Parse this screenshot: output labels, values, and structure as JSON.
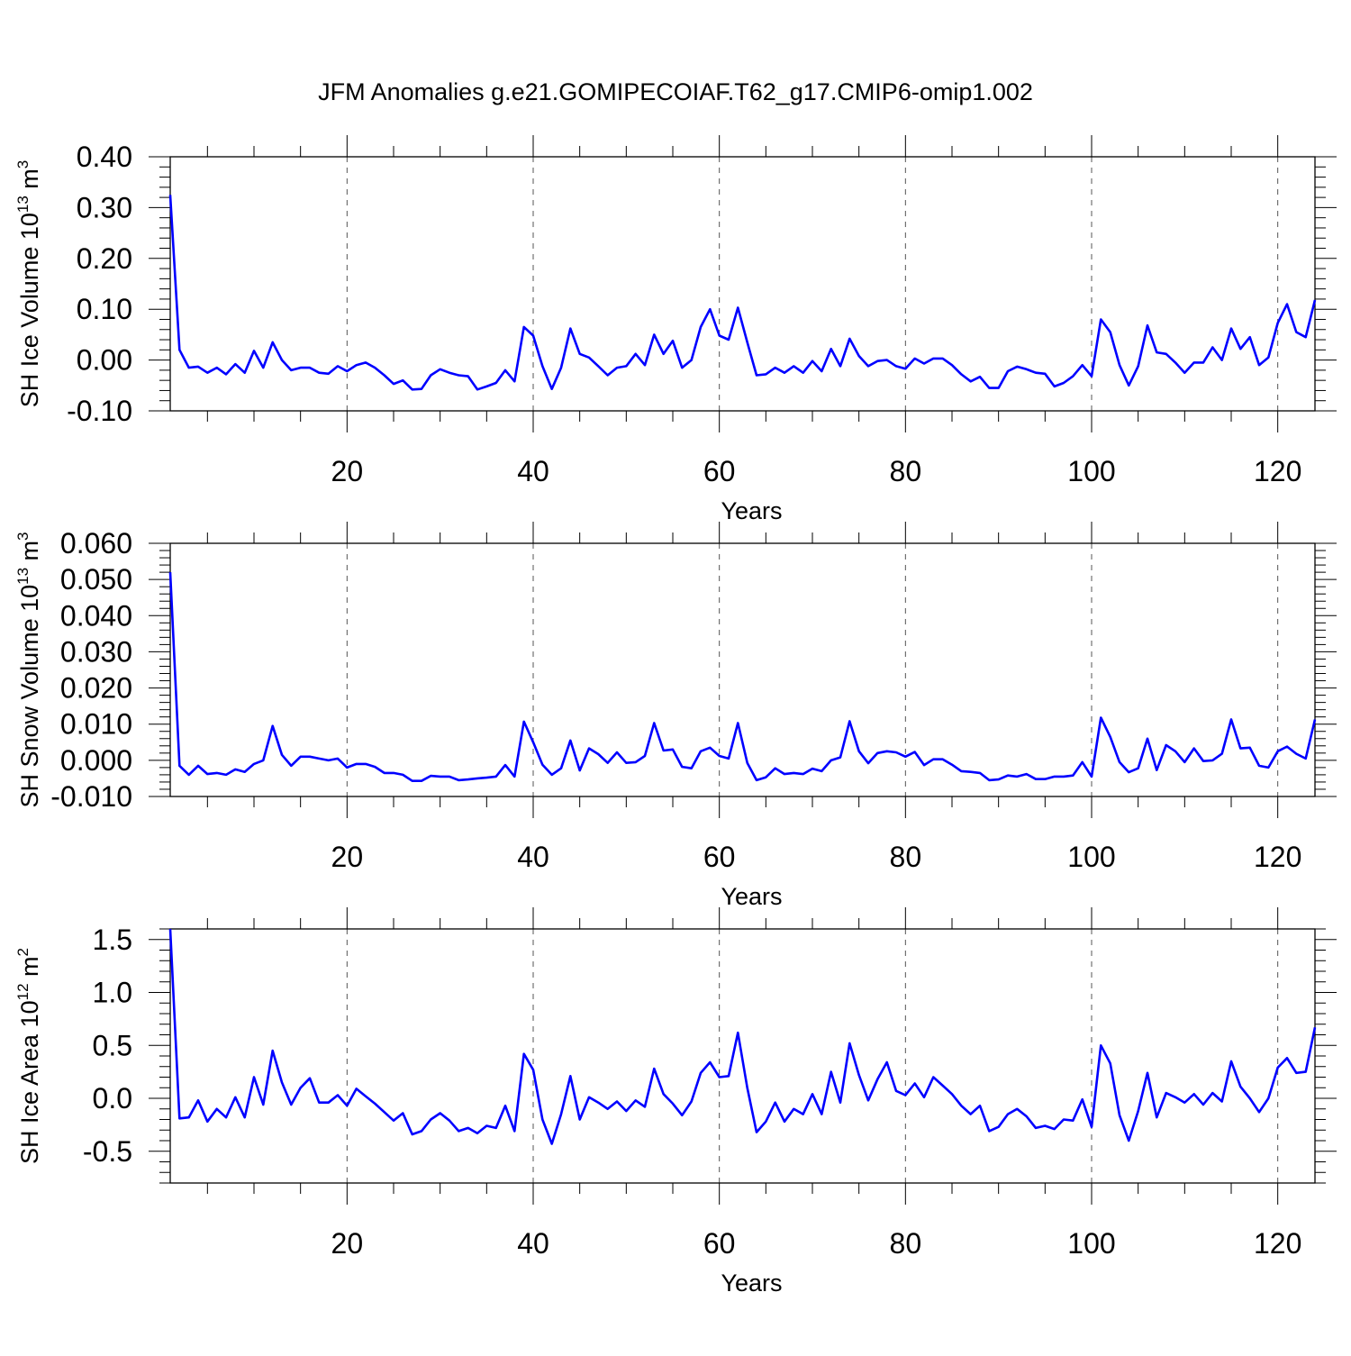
{
  "figure": {
    "title": "JFM Anomalies g.e21.GOMIPECOIAF.T62_g17.CMIP6-omip1.002"
  },
  "chart_data": [
    {
      "type": "line",
      "title": "JFM Anomalies g.e21.GOMIPECOIAF.T62_g17.CMIP6-omip1.002",
      "xlabel": "Years",
      "ylabel": "SH Ice Volume 10",
      "ylabel_exp": "13",
      "ylabel_unit": " m",
      "ylabel_unit_exp": "3",
      "xlim": [
        1,
        124
      ],
      "ylim": [
        -0.1,
        0.4
      ],
      "x_ticks": [
        20,
        40,
        60,
        80,
        100,
        120
      ],
      "y_ticks": [
        -0.1,
        0.0,
        0.1,
        0.2,
        0.3,
        0.4
      ],
      "y_tick_labels": [
        "-0.10",
        "0.00",
        "0.10",
        "0.20",
        "0.30",
        "0.40"
      ],
      "grid": "dashed vertical at major x ticks",
      "line_color": "#0000ff",
      "series": [
        {
          "name": "SH Ice Volume",
          "x_start": 1,
          "values": [
            0.325,
            0.02,
            -0.015,
            -0.013,
            -0.025,
            -0.015,
            -0.028,
            -0.008,
            -0.025,
            0.018,
            -0.015,
            0.035,
            0.0,
            -0.02,
            -0.015,
            -0.015,
            -0.025,
            -0.027,
            -0.012,
            -0.022,
            -0.01,
            -0.005,
            -0.015,
            -0.03,
            -0.047,
            -0.04,
            -0.058,
            -0.057,
            -0.03,
            -0.018,
            -0.025,
            -0.03,
            -0.032,
            -0.058,
            -0.052,
            -0.045,
            -0.02,
            -0.042,
            0.065,
            0.048,
            -0.012,
            -0.057,
            -0.015,
            0.062,
            0.012,
            0.005,
            -0.012,
            -0.03,
            -0.015,
            -0.012,
            0.012,
            -0.01,
            0.05,
            0.012,
            0.038,
            -0.015,
            0.0,
            0.065,
            0.1,
            0.048,
            0.04,
            0.103,
            0.035,
            -0.03,
            -0.028,
            -0.015,
            -0.025,
            -0.012,
            -0.025,
            -0.002,
            -0.022,
            0.022,
            -0.012,
            0.042,
            0.008,
            -0.012,
            -0.002,
            0.0,
            -0.012,
            -0.017,
            0.003,
            -0.007,
            0.003,
            0.003,
            -0.01,
            -0.028,
            -0.042,
            -0.033,
            -0.055,
            -0.055,
            -0.022,
            -0.013,
            -0.018,
            -0.025,
            -0.027,
            -0.052,
            -0.045,
            -0.032,
            -0.01,
            -0.032,
            0.08,
            0.055,
            -0.01,
            -0.05,
            -0.012,
            0.068,
            0.015,
            0.012,
            -0.005,
            -0.025,
            -0.005,
            -0.005,
            0.025,
            0.0,
            0.062,
            0.022,
            0.045,
            -0.01,
            0.005,
            0.073,
            0.11,
            0.055,
            0.045,
            0.118
          ]
        }
      ]
    },
    {
      "type": "line",
      "xlabel": "Years",
      "ylabel": "SH Snow Volume 10",
      "ylabel_exp": "13",
      "ylabel_unit": " m",
      "ylabel_unit_exp": "3",
      "xlim": [
        1,
        124
      ],
      "ylim": [
        -0.01,
        0.06
      ],
      "x_ticks": [
        20,
        40,
        60,
        80,
        100,
        120
      ],
      "y_ticks": [
        -0.01,
        0.0,
        0.01,
        0.02,
        0.03,
        0.04,
        0.05,
        0.06
      ],
      "y_tick_labels": [
        "-0.010",
        "0.000",
        "0.010",
        "0.020",
        "0.030",
        "0.040",
        "0.050",
        "0.060"
      ],
      "grid": "dashed vertical at major x ticks",
      "line_color": "#0000ff",
      "series": [
        {
          "name": "SH Snow Volume",
          "x_start": 1,
          "values": [
            0.052,
            -0.0015,
            -0.004,
            -0.0015,
            -0.0038,
            -0.0035,
            -0.004,
            -0.0025,
            -0.0032,
            -0.001,
            0.0,
            0.0095,
            0.0015,
            -0.0015,
            0.001,
            0.001,
            0.0005,
            0.0,
            0.0005,
            -0.002,
            -0.001,
            -0.001,
            -0.0018,
            -0.0035,
            -0.0035,
            -0.004,
            -0.0057,
            -0.0057,
            -0.0043,
            -0.0045,
            -0.0045,
            -0.0055,
            -0.0053,
            -0.005,
            -0.0048,
            -0.0045,
            -0.0013,
            -0.0045,
            0.0107,
            0.005,
            -0.0012,
            -0.004,
            -0.0022,
            0.0055,
            -0.0028,
            0.0033,
            0.0017,
            -0.0007,
            0.0022,
            -0.0007,
            -0.0005,
            0.0012,
            0.0103,
            0.0027,
            0.003,
            -0.0018,
            -0.0022,
            0.0025,
            0.0035,
            0.0012,
            0.0005,
            0.0103,
            -0.0007,
            -0.0055,
            -0.0047,
            -0.0022,
            -0.0038,
            -0.0035,
            -0.0038,
            -0.0023,
            -0.003,
            0.0,
            0.0008,
            0.0108,
            0.0025,
            -0.0008,
            0.002,
            0.0025,
            0.0022,
            0.001,
            0.0023,
            -0.0013,
            0.0003,
            0.0003,
            -0.0012,
            -0.003,
            -0.0032,
            -0.0035,
            -0.0055,
            -0.0053,
            -0.0042,
            -0.0045,
            -0.0038,
            -0.0052,
            -0.0052,
            -0.0045,
            -0.0045,
            -0.0042,
            -0.0005,
            -0.0045,
            0.0118,
            0.0065,
            -0.0005,
            -0.0033,
            -0.0022,
            0.006,
            -0.0027,
            0.0042,
            0.0025,
            -0.0005,
            0.0033,
            -0.0002,
            0.0,
            0.0018,
            0.0113,
            0.0033,
            0.0035,
            -0.0015,
            -0.002,
            0.0025,
            0.0038,
            0.0018,
            0.0005,
            0.0113
          ]
        }
      ]
    },
    {
      "type": "line",
      "xlabel": "Years",
      "ylabel": "SH Ice Area 10",
      "ylabel_exp": "12",
      "ylabel_unit": " m",
      "ylabel_unit_exp": "2",
      "xlim": [
        1,
        124
      ],
      "ylim": [
        -0.8,
        1.6
      ],
      "x_ticks": [
        20,
        40,
        60,
        80,
        100,
        120
      ],
      "y_ticks": [
        -0.5,
        0.0,
        0.5,
        1.0,
        1.5
      ],
      "y_tick_labels": [
        "-0.5",
        "0.0",
        "0.5",
        "1.0",
        "1.5"
      ],
      "grid": "dashed vertical at major x ticks",
      "line_color": "#0000ff",
      "series": [
        {
          "name": "SH Ice Area",
          "x_start": 1,
          "values": [
            1.6,
            -0.19,
            -0.18,
            -0.02,
            -0.22,
            -0.1,
            -0.18,
            0.01,
            -0.18,
            0.2,
            -0.06,
            0.45,
            0.15,
            -0.06,
            0.1,
            0.19,
            -0.04,
            -0.04,
            0.03,
            -0.07,
            0.09,
            0.02,
            -0.05,
            -0.13,
            -0.21,
            -0.14,
            -0.34,
            -0.31,
            -0.2,
            -0.14,
            -0.21,
            -0.31,
            -0.28,
            -0.33,
            -0.26,
            -0.28,
            -0.07,
            -0.31,
            0.42,
            0.27,
            -0.2,
            -0.43,
            -0.15,
            0.21,
            -0.2,
            0.01,
            -0.04,
            -0.1,
            -0.03,
            -0.12,
            -0.02,
            -0.08,
            0.28,
            0.04,
            -0.05,
            -0.16,
            -0.03,
            0.24,
            0.34,
            0.2,
            0.21,
            0.62,
            0.1,
            -0.32,
            -0.22,
            -0.04,
            -0.22,
            -0.1,
            -0.15,
            0.04,
            -0.15,
            0.25,
            -0.04,
            0.52,
            0.22,
            -0.02,
            0.18,
            0.34,
            0.07,
            0.03,
            0.14,
            0.01,
            0.2,
            0.12,
            0.04,
            -0.07,
            -0.15,
            -0.07,
            -0.31,
            -0.27,
            -0.15,
            -0.1,
            -0.17,
            -0.28,
            -0.26,
            -0.29,
            -0.2,
            -0.21,
            -0.01,
            -0.27,
            0.5,
            0.33,
            -0.16,
            -0.4,
            -0.12,
            0.24,
            -0.18,
            0.05,
            0.01,
            -0.04,
            0.04,
            -0.06,
            0.05,
            -0.03,
            0.35,
            0.11,
            0.0,
            -0.13,
            0.0,
            0.29,
            0.38,
            0.24,
            0.25,
            0.67
          ]
        }
      ]
    }
  ]
}
